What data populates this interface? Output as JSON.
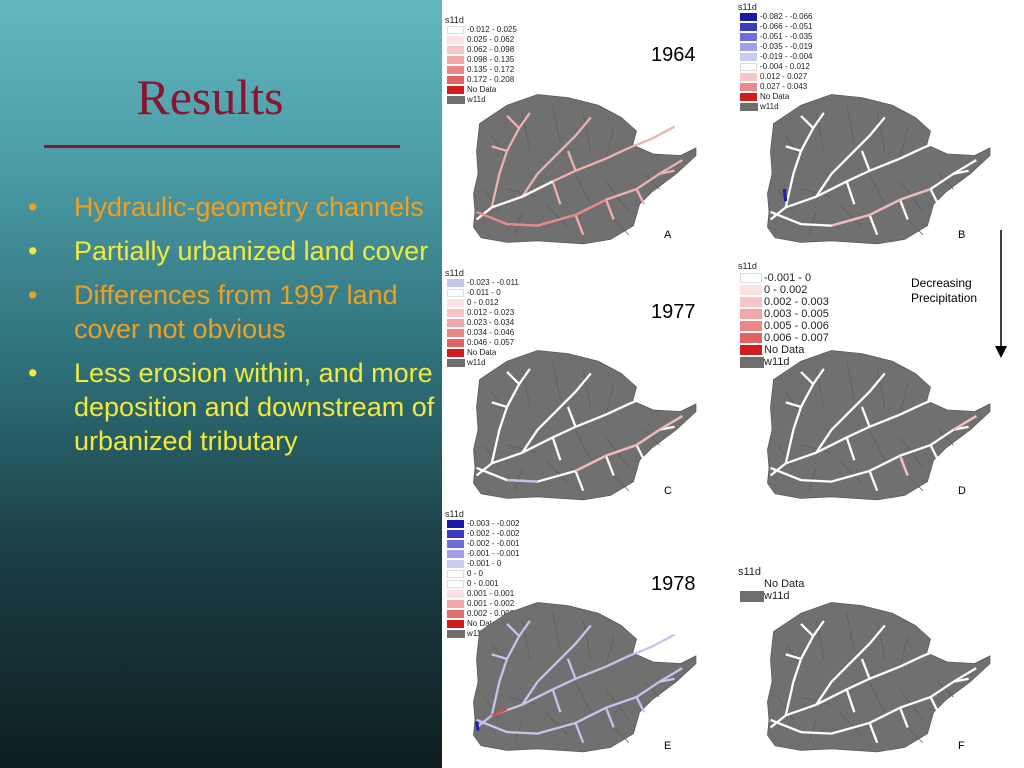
{
  "slide": {
    "title": "Results",
    "bullets": [
      {
        "text": "Hydraulic-geometry channels",
        "color": "#f0a020"
      },
      {
        "text": "Partially urbanized land cover",
        "color": "#f2ea3a"
      },
      {
        "text": "Differences from 1997 land cover not obvious",
        "color": "#f0a020"
      },
      {
        "text": "Less erosion within, and more deposition and downstream of urbanized tributary",
        "color": "#f2ea3a"
      }
    ]
  },
  "figure": {
    "years": [
      "1964",
      "1977",
      "1978"
    ],
    "side_note": "Decreasing Precipitation",
    "panels": [
      {
        "label": "A",
        "legend_title": "s11d",
        "legend": [
          "-0.012 - 0.025",
          "0.025 - 0.062",
          "0.062 - 0.098",
          "0.098 - 0.135",
          "0.135 - 0.172",
          "0.172 - 0.208",
          "No Data",
          "w11d"
        ],
        "colors": [
          "#ffffff",
          "#fbe3e3",
          "#f6c6c6",
          "#f0a8a8",
          "#e98888",
          "#e06464",
          "#d01c1c"
        ]
      },
      {
        "label": "B",
        "legend_title": "s11d",
        "legend": [
          "-0.082 - -0.066",
          "-0.066 - -0.051",
          "-0.051 - -0.035",
          "-0.035 - -0.019",
          "-0.019 - -0.004",
          "-0.004 - 0.012",
          "0.012 - 0.027",
          "0.027 - 0.043",
          "No Data",
          "w11d"
        ],
        "colors": [
          "#1818a8",
          "#3a3ac2",
          "#6e6ed8",
          "#a0a0e6",
          "#cacaf2",
          "#ffffff",
          "#f6c6c6",
          "#e88a8a",
          "#d01c1c"
        ]
      },
      {
        "label": "C",
        "legend_title": "s11d",
        "legend": [
          "-0.023 - -0.011",
          "-0.011 - 0",
          "0 - 0.012",
          "0.012 - 0.023",
          "0.023 - 0.034",
          "0.034 - 0.046",
          "0.046 - 0.057",
          "No Data",
          "w11d"
        ],
        "colors": [
          "#c6c6ee",
          "#ffffff",
          "#fbe3e3",
          "#f6c6c6",
          "#f0a8a8",
          "#e98888",
          "#e06464",
          "#d01c1c"
        ]
      },
      {
        "label": "D",
        "legend_title": "s11d",
        "legend": [
          "-0.001 - 0",
          "0 - 0.002",
          "0.002 - 0.003",
          "0.003 - 0.005",
          "0.005 - 0.006",
          "0.006 - 0.007",
          "No Data",
          "w11d"
        ],
        "colors": [
          "#ffffff",
          "#fbe3e3",
          "#f6c6c6",
          "#f0a8a8",
          "#e98888",
          "#e06464",
          "#d01c1c"
        ]
      },
      {
        "label": "E",
        "legend_title": "s11d",
        "legend": [
          "-0.003 - -0.002",
          "-0.002 - -0.002",
          "-0.002 - -0.001",
          "-0.001 - -0.001",
          "-0.001 - 0",
          "0 - 0",
          "0 - 0.001",
          "0.001 - 0.001",
          "0.001 - 0.002",
          "0.002 - 0.002",
          "No Data",
          "w11d"
        ],
        "colors": [
          "#1818a8",
          "#3a3ac2",
          "#6e6ed8",
          "#a0a0e6",
          "#cacaf2",
          "#ffffff",
          "#ffffff",
          "#fbe3e3",
          "#f0a8a8",
          "#e07070",
          "#d01c1c"
        ]
      },
      {
        "label": "F",
        "legend_title": "s11d",
        "legend": [
          "No Data",
          "w11d"
        ],
        "colors": []
      }
    ]
  }
}
